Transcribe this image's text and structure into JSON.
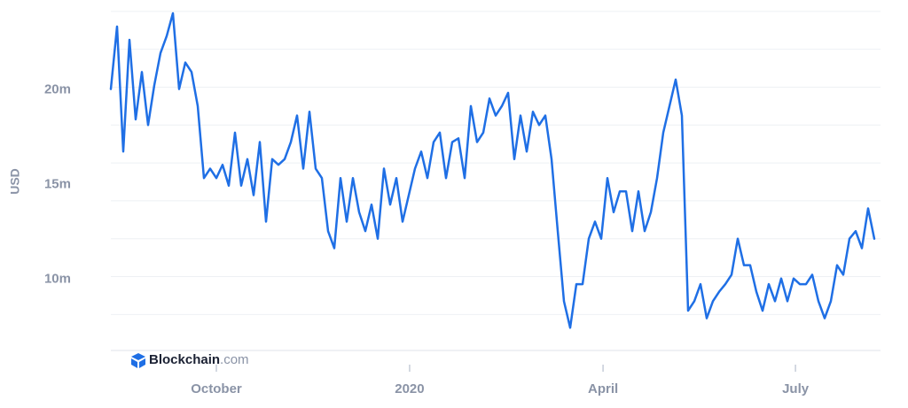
{
  "chart_data": {
    "type": "line",
    "y_label": "USD",
    "watermark_brand": "Blockchain",
    "watermark_suffix": ".com",
    "xlim": [
      0,
      372
    ],
    "xticks": [
      {
        "value": 51,
        "label": "October"
      },
      {
        "value": 144.4,
        "label": "2020"
      },
      {
        "value": 237.9,
        "label": "April"
      },
      {
        "value": 330.9,
        "label": "July"
      }
    ],
    "ylim": [
      6100000,
      24600000
    ],
    "yticks": [
      {
        "value": 10000000,
        "label": "10m"
      },
      {
        "value": 15000000,
        "label": "15m"
      },
      {
        "value": 20000000,
        "label": "20m"
      }
    ],
    "ygrid": [
      8000000,
      10000000,
      12000000,
      14000000,
      16000000,
      18000000,
      20000000,
      22000000,
      24000000
    ],
    "grid": true,
    "series": [
      {
        "color": "#1f6fe5",
        "x": [
          0,
          3,
          6,
          9,
          12,
          15,
          18,
          21,
          24,
          27,
          30,
          33,
          36,
          39,
          42,
          45,
          48,
          51,
          54,
          57,
          60,
          63,
          66,
          69,
          72,
          75,
          78,
          81,
          84,
          87,
          90,
          93,
          96,
          99,
          102,
          105,
          108,
          111,
          114,
          117,
          120,
          123,
          126,
          129,
          132,
          135,
          138,
          141,
          144,
          147,
          150,
          153,
          156,
          159,
          162,
          165,
          168,
          171,
          174,
          177,
          180,
          183,
          186,
          189,
          192,
          195,
          198,
          201,
          204,
          207,
          210,
          213,
          216,
          219,
          222,
          225,
          228,
          231,
          234,
          237,
          240,
          243,
          246,
          249,
          252,
          255,
          258,
          261,
          264,
          267,
          270,
          273,
          276,
          279,
          282,
          285,
          288,
          291,
          294,
          297,
          300,
          303,
          306,
          309,
          312,
          315,
          318,
          321,
          324,
          327,
          330,
          333,
          336,
          339,
          342,
          345,
          348,
          351,
          354,
          357,
          360,
          363,
          366,
          369
        ],
        "values": [
          19900000,
          23200000,
          16600000,
          22500000,
          18300000,
          20800000,
          18000000,
          20100000,
          21800000,
          22700000,
          23900000,
          19900000,
          21300000,
          20800000,
          19000000,
          15200000,
          15700000,
          15200000,
          15900000,
          14800000,
          17600000,
          14800000,
          16200000,
          14300000,
          17100000,
          12900000,
          16200000,
          15900000,
          16200000,
          17100000,
          18500000,
          15700000,
          18700000,
          15700000,
          15200000,
          12400000,
          11500000,
          15200000,
          12900000,
          15200000,
          13400000,
          12400000,
          13800000,
          12000000,
          15700000,
          13800000,
          15200000,
          12900000,
          14300000,
          15700000,
          16600000,
          15200000,
          17100000,
          17600000,
          15200000,
          17100000,
          17300000,
          15200000,
          19000000,
          17100000,
          17600000,
          19400000,
          18500000,
          19000000,
          19700000,
          16200000,
          18500000,
          16600000,
          18700000,
          18000000,
          18500000,
          16200000,
          12400000,
          8700000,
          7300000,
          9600000,
          9600000,
          12000000,
          12900000,
          12000000,
          15200000,
          13400000,
          14500000,
          14500000,
          12400000,
          14500000,
          12400000,
          13400000,
          15200000,
          17600000,
          19000000,
          20400000,
          18500000,
          8200000,
          8700000,
          9600000,
          7800000,
          8700000,
          9200000,
          9600000,
          10100000,
          12000000,
          10600000,
          10600000,
          9200000,
          8200000,
          9600000,
          8700000,
          9900000,
          8700000,
          9900000,
          9600000,
          9600000,
          10100000,
          8700000,
          7800000,
          8700000,
          10600000,
          10100000,
          12000000,
          12400000,
          11500000,
          13600000,
          12000000
        ]
      }
    ]
  }
}
